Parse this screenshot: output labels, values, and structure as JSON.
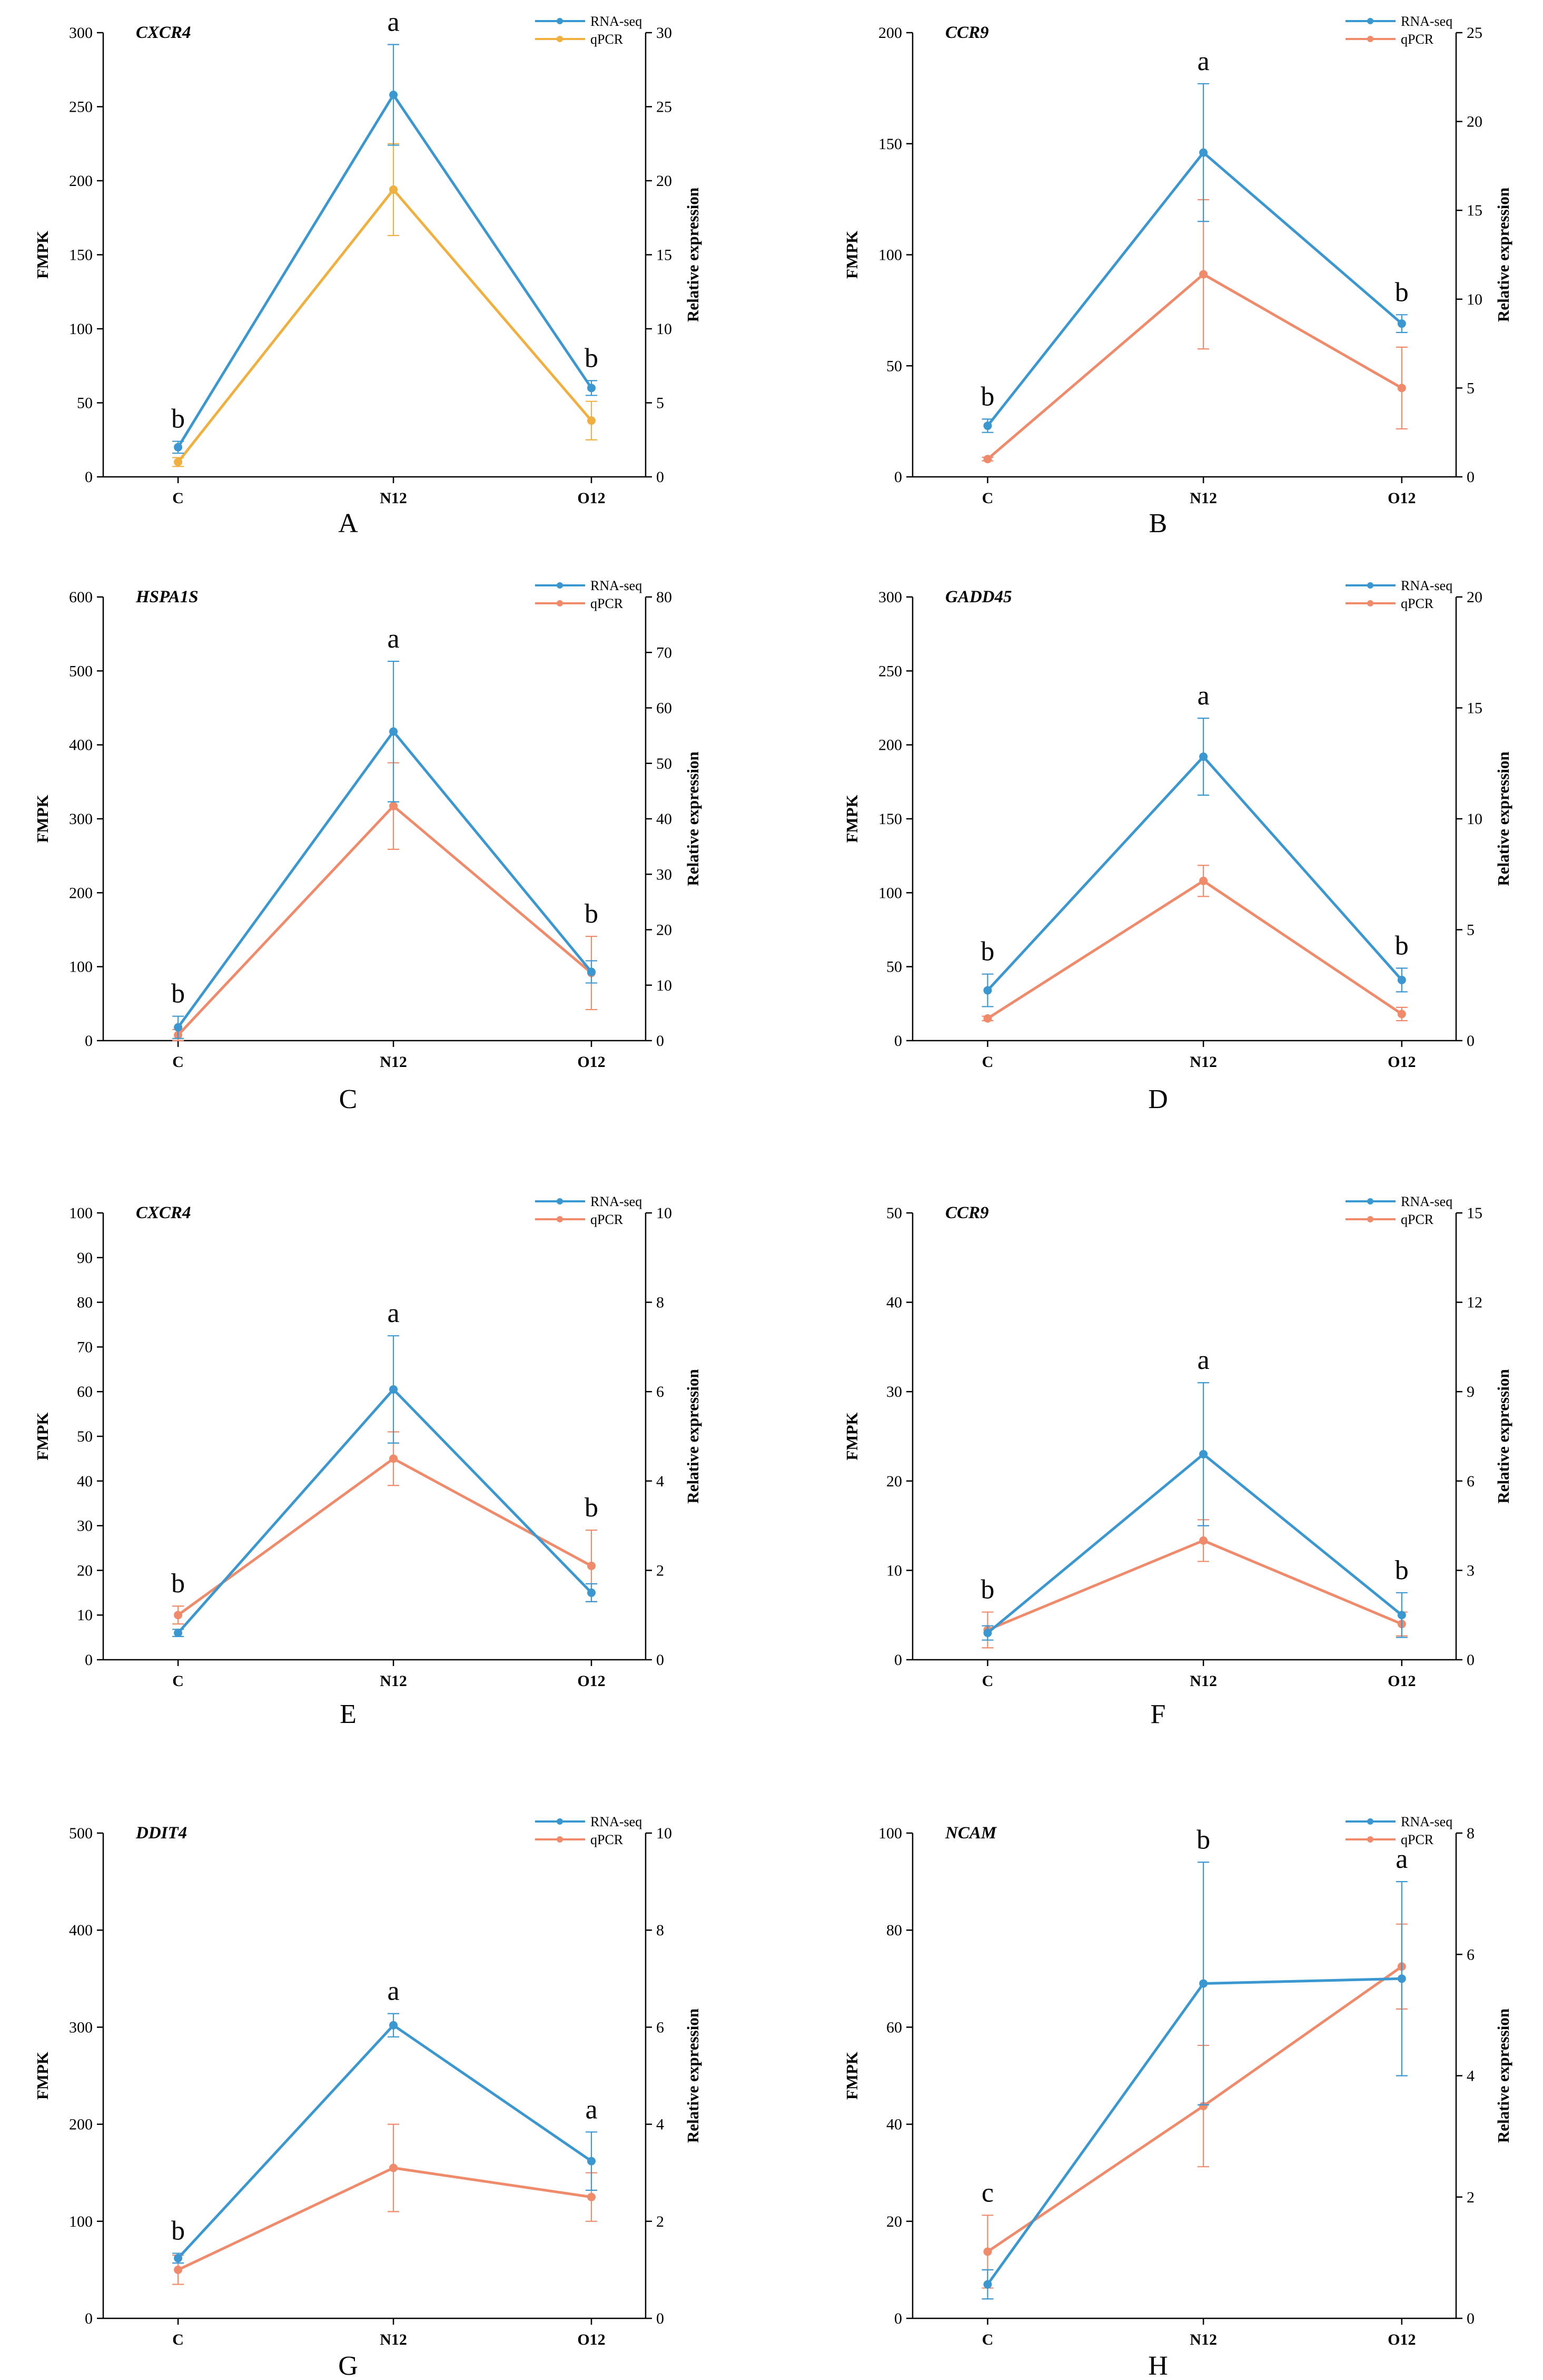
{
  "figure": {
    "x_categories": [
      "C",
      "N12",
      "O12"
    ],
    "y_left_label": "FMPK",
    "y_right_label": "Relative expression",
    "legend": [
      "RNA-seq",
      "qPCR"
    ],
    "colors": {
      "rna": "#3a97cf",
      "qpcr": "#ef8a6a",
      "qpcr_alt": "#f0b040",
      "axis": "#000000"
    }
  },
  "chart_data": [
    {
      "type": "line",
      "panel": "A",
      "title": "CXCR4",
      "xlabel": "",
      "ylabel": "FMPK",
      "ylabel_right": "Relative expression",
      "categories": [
        "C",
        "N12",
        "O12"
      ],
      "ylim_left": [
        0,
        300
      ],
      "yticks_left": [
        0,
        50,
        100,
        150,
        200,
        250,
        300
      ],
      "ylim_right": [
        0,
        30
      ],
      "yticks_right": [
        0,
        5,
        10,
        15,
        20,
        25,
        30
      ],
      "legend_placement": "top-right",
      "series": [
        {
          "name": "RNA-seq",
          "axis": "left",
          "values": [
            20,
            258,
            60
          ],
          "errors": [
            4,
            34,
            5
          ]
        },
        {
          "name": "qPCR",
          "axis": "right",
          "values": [
            1.0,
            19.4,
            3.8
          ],
          "errors": [
            0.3,
            3.1,
            1.3
          ],
          "color": "#f0b040"
        }
      ],
      "significance": [
        "b",
        "a",
        "b"
      ]
    },
    {
      "type": "line",
      "panel": "B",
      "title": "CCR9",
      "xlabel": "",
      "ylabel": "FMPK",
      "ylabel_right": "Relative expression",
      "categories": [
        "C",
        "N12",
        "O12"
      ],
      "ylim_left": [
        0,
        200
      ],
      "yticks_left": [
        0,
        50,
        100,
        150,
        200
      ],
      "ylim_right": [
        0,
        25
      ],
      "yticks_right": [
        0,
        5,
        10,
        15,
        20,
        25
      ],
      "legend_placement": "top-right",
      "series": [
        {
          "name": "RNA-seq",
          "axis": "left",
          "values": [
            23,
            146,
            69
          ],
          "errors": [
            3,
            31,
            4
          ]
        },
        {
          "name": "qPCR",
          "axis": "right",
          "values": [
            1.0,
            11.4,
            5.0
          ],
          "errors": [
            0.1,
            4.2,
            2.3
          ]
        }
      ],
      "significance": [
        "b",
        "a",
        "b"
      ]
    },
    {
      "type": "line",
      "panel": "C",
      "title": "HSPA1S",
      "xlabel": "",
      "ylabel": "FMPK",
      "ylabel_right": "Relative expression",
      "categories": [
        "C",
        "N12",
        "O12"
      ],
      "ylim_left": [
        0,
        600
      ],
      "yticks_left": [
        0,
        100,
        200,
        300,
        400,
        500,
        600
      ],
      "ylim_right": [
        0,
        80
      ],
      "yticks_right": [
        0,
        10,
        20,
        30,
        40,
        50,
        60,
        70,
        80
      ],
      "legend_placement": "top-right",
      "series": [
        {
          "name": "RNA-seq",
          "axis": "left",
          "values": [
            18,
            418,
            93
          ],
          "errors": [
            15,
            95,
            15
          ]
        },
        {
          "name": "qPCR",
          "axis": "right",
          "values": [
            1.0,
            42.3,
            12.2
          ],
          "errors": [
            1.0,
            7.8,
            6.6
          ]
        }
      ],
      "significance": [
        "b",
        "a",
        "b"
      ]
    },
    {
      "type": "line",
      "panel": "D",
      "title": "GADD45",
      "xlabel": "",
      "ylabel": "FMPK",
      "ylabel_right": "Relative expression",
      "categories": [
        "C",
        "N12",
        "O12"
      ],
      "ylim_left": [
        0,
        300
      ],
      "yticks_left": [
        0,
        50,
        100,
        150,
        200,
        250,
        300
      ],
      "ylim_right": [
        0,
        20
      ],
      "yticks_right": [
        0,
        5,
        10,
        15,
        20
      ],
      "legend_placement": "top-right",
      "series": [
        {
          "name": "RNA-seq",
          "axis": "left",
          "values": [
            34,
            192,
            41
          ],
          "errors": [
            11,
            26,
            8
          ]
        },
        {
          "name": "qPCR",
          "axis": "right",
          "values": [
            1.0,
            7.2,
            1.2
          ],
          "errors": [
            0.1,
            0.7,
            0.3
          ]
        }
      ],
      "significance": [
        "b",
        "a",
        "b"
      ]
    },
    {
      "type": "line",
      "panel": "E",
      "title": "CXCR4",
      "xlabel": "",
      "ylabel": "FMPK",
      "ylabel_right": "Relative expression",
      "categories": [
        "C",
        "N12",
        "O12"
      ],
      "ylim_left": [
        0,
        100
      ],
      "yticks_left": [
        0,
        10,
        20,
        30,
        40,
        50,
        60,
        70,
        80,
        90,
        100
      ],
      "ylim_right": [
        0,
        10
      ],
      "yticks_right": [
        0,
        2,
        4,
        6,
        8,
        10
      ],
      "legend_placement": "top-right",
      "series": [
        {
          "name": "RNA-seq",
          "axis": "left",
          "values": [
            6,
            60.5,
            15
          ],
          "errors": [
            0.8,
            12,
            2
          ]
        },
        {
          "name": "qPCR",
          "axis": "right",
          "values": [
            1.0,
            4.5,
            2.1
          ],
          "errors": [
            0.2,
            0.6,
            0.8
          ]
        }
      ],
      "significance": [
        "b",
        "a",
        "b"
      ]
    },
    {
      "type": "line",
      "panel": "F",
      "title": "CCR9",
      "xlabel": "",
      "ylabel": "FMPK",
      "ylabel_right": "Relative expression",
      "categories": [
        "C",
        "N12",
        "O12"
      ],
      "ylim_left": [
        0,
        50
      ],
      "yticks_left": [
        0,
        10,
        20,
        30,
        40,
        50
      ],
      "ylim_right": [
        0,
        15
      ],
      "yticks_right": [
        0,
        3,
        6,
        9,
        12,
        15
      ],
      "legend_placement": "top-right",
      "series": [
        {
          "name": "RNA-seq",
          "axis": "left",
          "values": [
            3,
            23,
            5
          ],
          "errors": [
            0.8,
            8,
            2.5
          ]
        },
        {
          "name": "qPCR",
          "axis": "right",
          "values": [
            1.0,
            4.0,
            1.2
          ],
          "errors": [
            0.6,
            0.7,
            0.4
          ]
        }
      ],
      "significance": [
        "b",
        "a",
        "b"
      ]
    },
    {
      "type": "line",
      "panel": "G",
      "title": "DDIT4",
      "xlabel": "",
      "ylabel": "FMPK",
      "ylabel_right": "Relative expression",
      "categories": [
        "C",
        "N12",
        "O12"
      ],
      "ylim_left": [
        0,
        500
      ],
      "yticks_left": [
        0,
        100,
        200,
        300,
        400,
        500
      ],
      "ylim_right": [
        0,
        10
      ],
      "yticks_right": [
        0,
        2,
        4,
        6,
        8,
        10
      ],
      "legend_placement": "top-right",
      "series": [
        {
          "name": "RNA-seq",
          "axis": "left",
          "values": [
            62,
            302,
            162
          ],
          "errors": [
            5,
            12,
            30
          ]
        },
        {
          "name": "qPCR",
          "axis": "right",
          "values": [
            1.0,
            3.1,
            2.5
          ],
          "errors": [
            0.3,
            0.9,
            0.5
          ]
        }
      ],
      "significance": [
        "b",
        "a",
        "a"
      ]
    },
    {
      "type": "line",
      "panel": "H",
      "title": "NCAM",
      "xlabel": "",
      "ylabel": "FMPK",
      "ylabel_right": "Relative expression",
      "categories": [
        "C",
        "N12",
        "O12"
      ],
      "ylim_left": [
        0,
        100
      ],
      "yticks_left": [
        0,
        20,
        40,
        60,
        80,
        100
      ],
      "ylim_right": [
        0,
        8
      ],
      "yticks_right": [
        0,
        2,
        4,
        6,
        8
      ],
      "legend_placement": "top-right",
      "series": [
        {
          "name": "RNA-seq",
          "axis": "left",
          "values": [
            7,
            69,
            70
          ],
          "errors": [
            3,
            25,
            20
          ]
        },
        {
          "name": "qPCR",
          "axis": "right",
          "values": [
            1.1,
            3.5,
            5.8
          ],
          "errors": [
            0.6,
            1.0,
            0.7
          ]
        }
      ],
      "significance": [
        "c",
        "b",
        "a"
      ]
    }
  ]
}
